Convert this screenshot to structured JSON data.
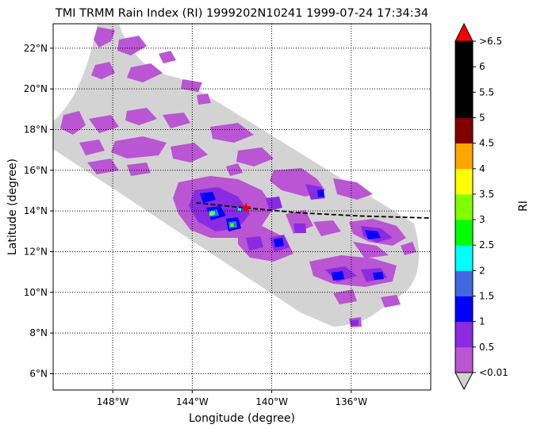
{
  "title": "TMI TRMM Rain Index (RI) 1999202N10241 1999-07-24 17:34:34",
  "map": {
    "xlabel": "Longitude (degree)",
    "ylabel": "Latitude (degree)",
    "lon_range": [
      -151,
      -132
    ],
    "lat_range": [
      5.2,
      23.2
    ],
    "lon_ticks": [
      {
        "value": -148,
        "label": "148°W"
      },
      {
        "value": -144,
        "label": "144°W"
      },
      {
        "value": -140,
        "label": "140°W"
      },
      {
        "value": -136,
        "label": "136°W"
      }
    ],
    "lat_ticks": [
      {
        "value": 6,
        "label": "6°N"
      },
      {
        "value": 8,
        "label": "8°N"
      },
      {
        "value": 10,
        "label": "10°N"
      },
      {
        "value": 12,
        "label": "12°N"
      },
      {
        "value": 14,
        "label": "14°N"
      },
      {
        "value": 16,
        "label": "16°N"
      },
      {
        "value": 18,
        "label": "18°N"
      },
      {
        "value": 20,
        "label": "20°N"
      },
      {
        "value": 22,
        "label": "22°N"
      }
    ],
    "grid": "dotted",
    "swath_color": "#d3d3d3",
    "storm_center": {
      "lon": -141.3,
      "lat": 14.15,
      "color": "#e8000b"
    },
    "track": [
      {
        "lon": -143.8,
        "lat": 14.4
      },
      {
        "lon": -141.3,
        "lat": 14.15
      },
      {
        "lon": -138.5,
        "lat": 13.9
      },
      {
        "lon": -135.5,
        "lat": 13.75
      },
      {
        "lon": -132.0,
        "lat": 13.65
      }
    ]
  },
  "colorbar": {
    "label": "RI",
    "ticks": [
      "<0.01",
      "0.5",
      "1",
      "1.5",
      "2",
      "2.5",
      "3",
      "3.5",
      "4",
      "4.5",
      "5",
      "5.5",
      "6",
      ">6.5"
    ],
    "colors": [
      "#ba55d3",
      "#8a2be2",
      "#0000ff",
      "#4169e1",
      "#00ffff",
      "#00ff00",
      "#7fff00",
      "#ffff00",
      "#ffa500",
      "#800000",
      "#000000",
      "#000000",
      "#000000"
    ],
    "under_color": "#d3d3d3",
    "over_color": "#ff0000"
  }
}
